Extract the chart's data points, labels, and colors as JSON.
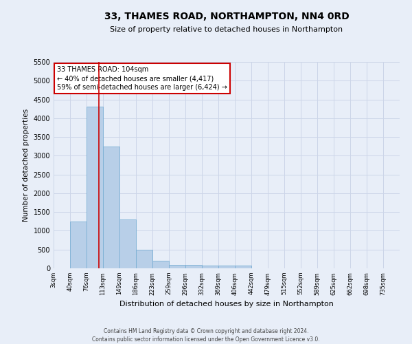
{
  "title": "33, THAMES ROAD, NORTHAMPTON, NN4 0RD",
  "subtitle": "Size of property relative to detached houses in Northampton",
  "xlabel": "Distribution of detached houses by size in Northampton",
  "ylabel": "Number of detached properties",
  "footer_line1": "Contains HM Land Registry data © Crown copyright and database right 2024.",
  "footer_line2": "Contains public sector information licensed under the Open Government Licence v3.0.",
  "annotation_title": "33 THAMES ROAD: 104sqm",
  "annotation_line1": "← 40% of detached houses are smaller (4,417)",
  "annotation_line2": "59% of semi-detached houses are larger (6,424) →",
  "bar_color": "#b8cfe8",
  "bar_edge_color": "#7aafd4",
  "red_line_x": 104,
  "annotation_box_color": "#ffffff",
  "annotation_box_edge": "#cc0000",
  "categories": [
    "3sqm",
    "40sqm",
    "76sqm",
    "113sqm",
    "149sqm",
    "186sqm",
    "223sqm",
    "259sqm",
    "296sqm",
    "332sqm",
    "369sqm",
    "406sqm",
    "442sqm",
    "479sqm",
    "515sqm",
    "552sqm",
    "589sqm",
    "625sqm",
    "662sqm",
    "698sqm",
    "735sqm"
  ],
  "bin_edges": [
    3,
    40,
    76,
    113,
    149,
    186,
    223,
    259,
    296,
    332,
    369,
    406,
    442,
    479,
    515,
    552,
    589,
    625,
    662,
    698,
    735
  ],
  "values": [
    0,
    1250,
    4300,
    3250,
    1300,
    500,
    200,
    100,
    100,
    75,
    75,
    75,
    0,
    0,
    0,
    0,
    0,
    0,
    0,
    0,
    0
  ],
  "ylim": [
    0,
    5500
  ],
  "yticks": [
    0,
    500,
    1000,
    1500,
    2000,
    2500,
    3000,
    3500,
    4000,
    4500,
    5000,
    5500
  ],
  "grid_color": "#ccd5e8",
  "background_color": "#e8eef8"
}
